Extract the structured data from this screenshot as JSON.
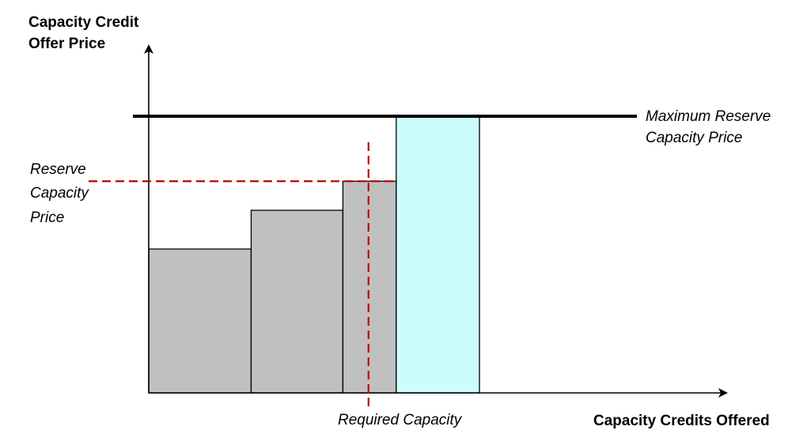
{
  "chart_data": {
    "type": "bar",
    "title": "",
    "xlabel": "Capacity Credits Offered",
    "ylabel_lines": [
      "Capacity Credit",
      "Offer Price"
    ],
    "xlim": [
      0,
      100
    ],
    "ylim": [
      0,
      100
    ],
    "offer_blocks": [
      {
        "x_start": 0,
        "x_end": 24,
        "price": 52,
        "color": "#c0c0c0"
      },
      {
        "x_start": 24,
        "x_end": 45.5,
        "price": 66,
        "color": "#c0c0c0"
      },
      {
        "x_start": 45.5,
        "x_end": 58,
        "price": 76.5,
        "color": "#c0c0c0"
      },
      {
        "x_start": 58,
        "x_end": 77.5,
        "price": 100,
        "color": "#ccfcfc"
      }
    ],
    "max_price": {
      "value": 100,
      "label_lines": [
        "Maximum Reserve",
        "Capacity Price"
      ],
      "color": "#000000"
    },
    "reserve_price": {
      "value": 76.5,
      "label_lines": [
        "Reserve",
        "Capacity",
        "Price"
      ],
      "color": "#c00000"
    },
    "required_capacity": {
      "value": 51.5,
      "label": "Required Capacity",
      "color": "#c00000"
    }
  }
}
